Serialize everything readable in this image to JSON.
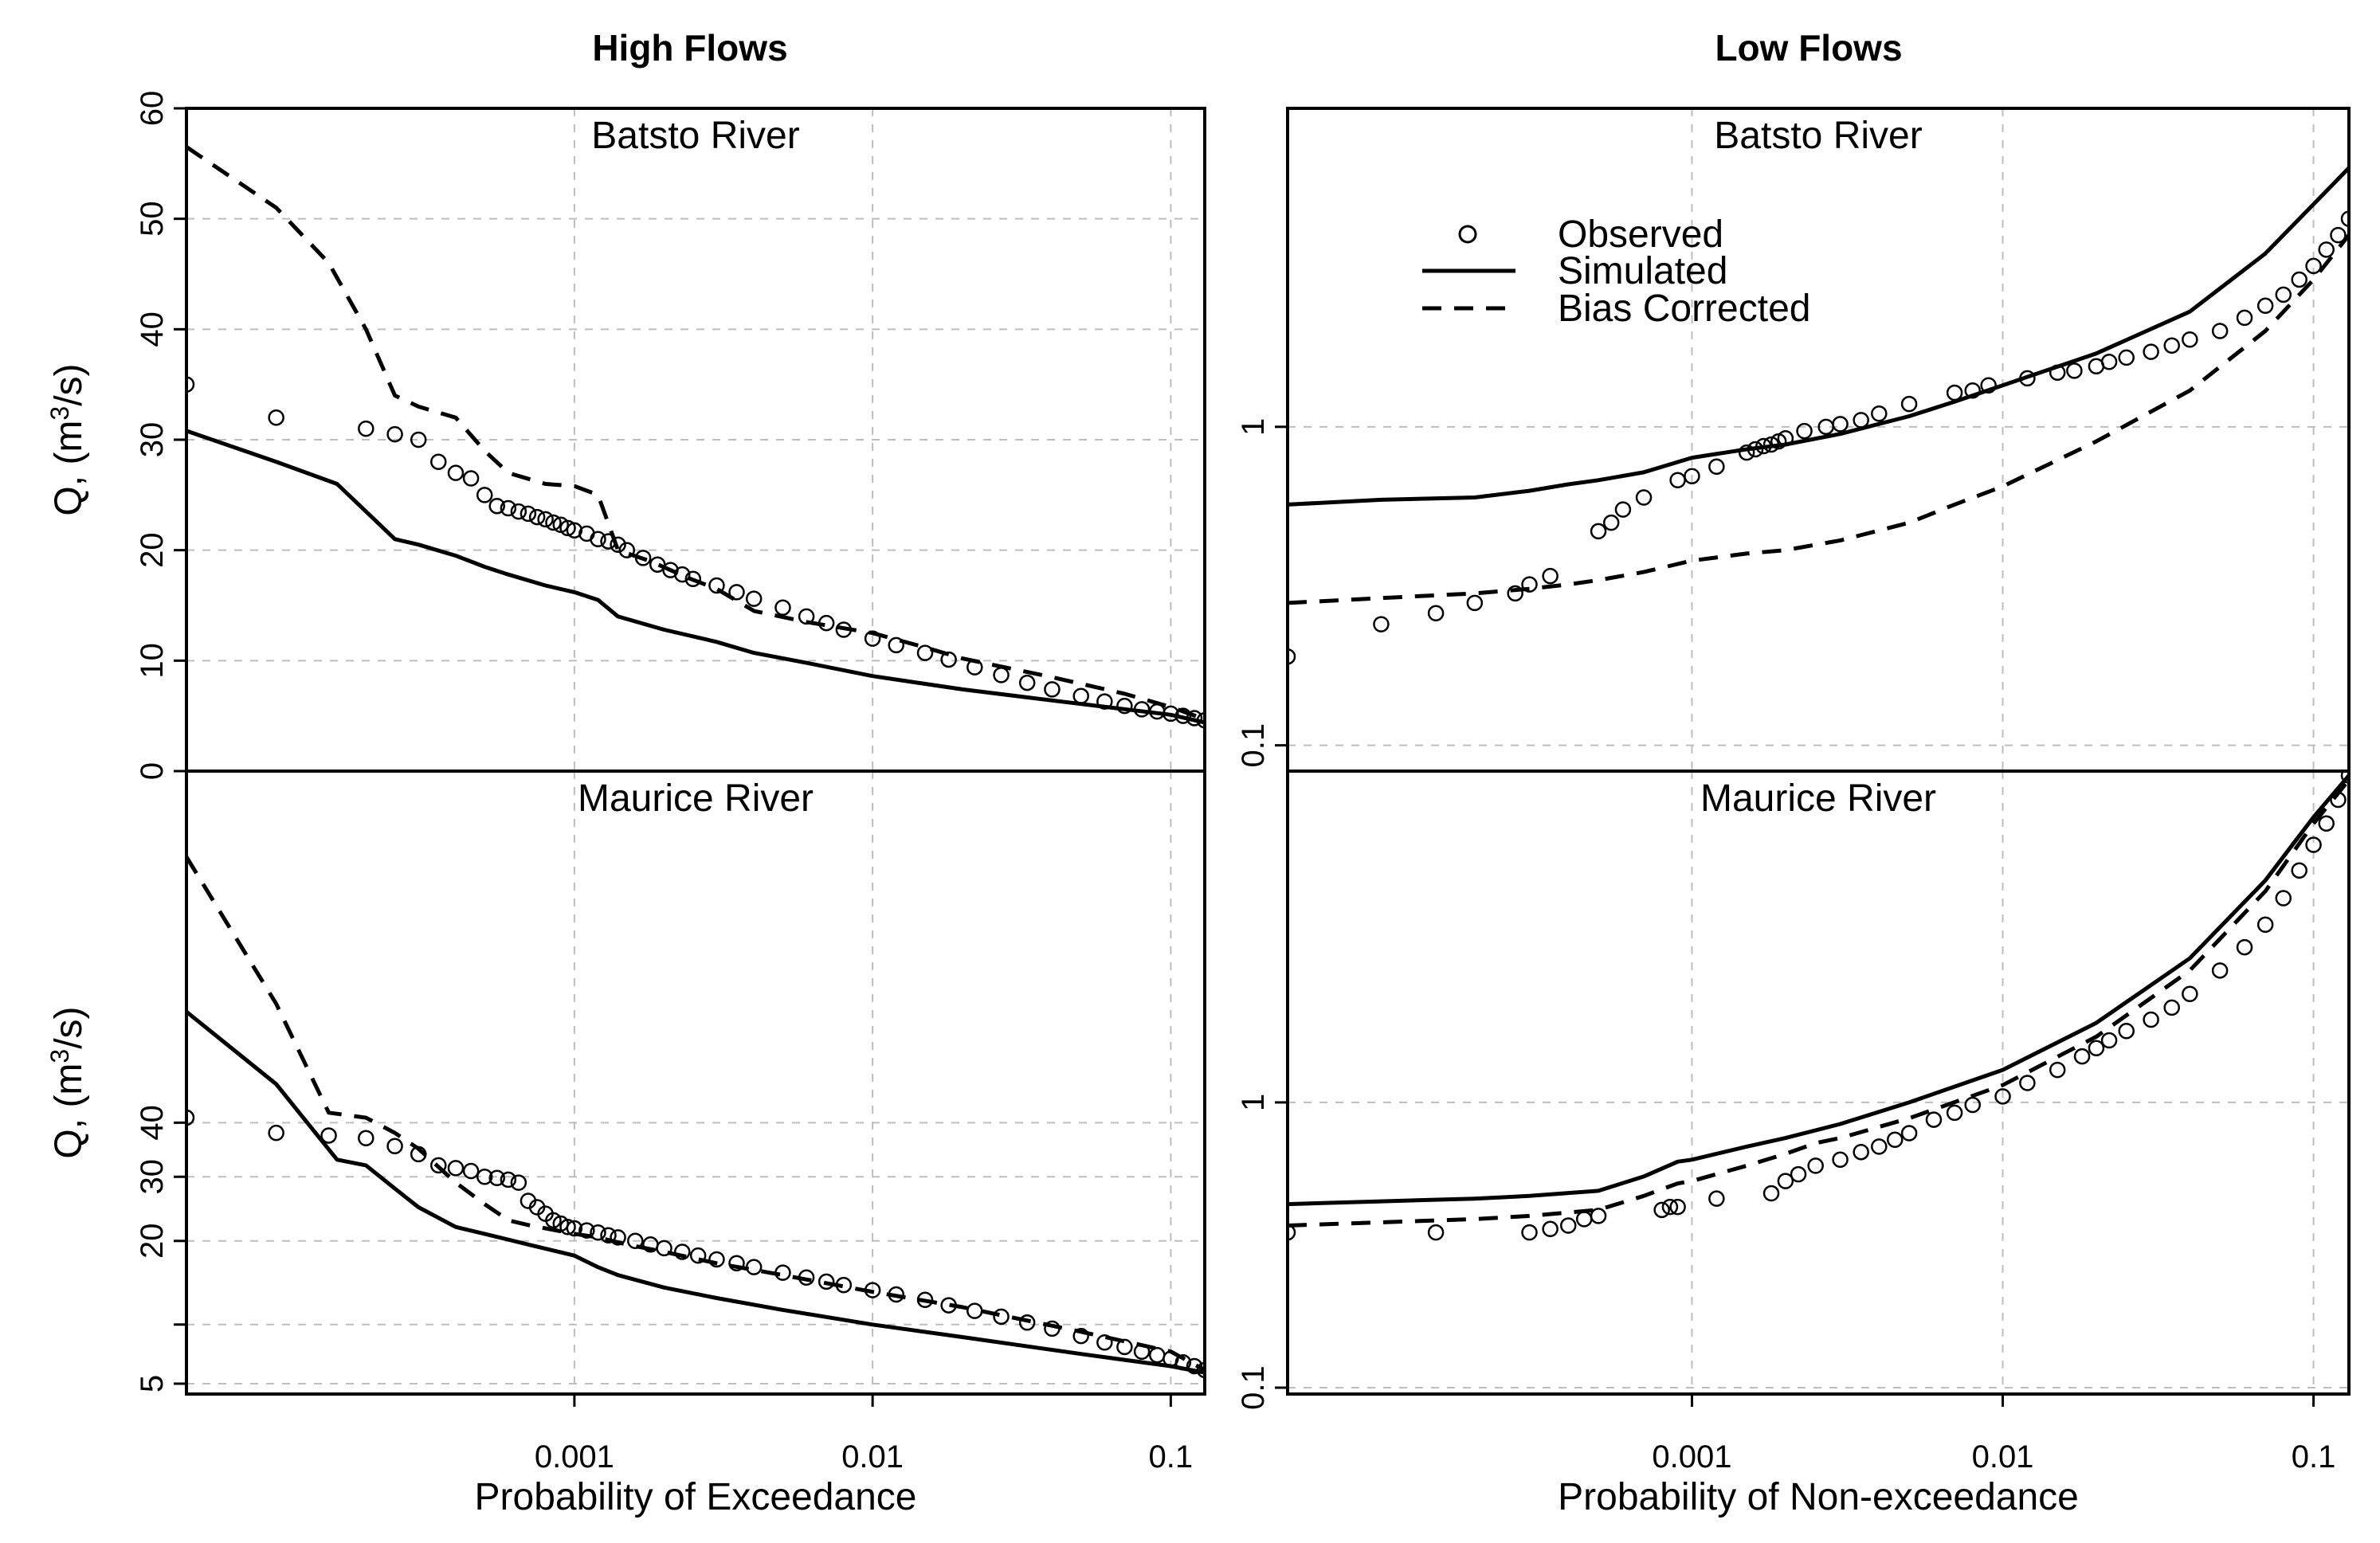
{
  "figure": {
    "column_titles": [
      "High Flows",
      "Low Flows"
    ]
  },
  "legend": {
    "observed": "Observed",
    "simulated": "Simulated",
    "bias_corrected": "Bias Corrected"
  },
  "chart_data": [
    {
      "type": "line",
      "panel": "high-batsto",
      "title": "Batsto River",
      "xscale": "log",
      "yscale": "linear",
      "xlim": [
        5e-05,
        0.13
      ],
      "ylim": [
        0,
        60
      ],
      "xticks": [
        0.001,
        0.01,
        0.1
      ],
      "xtick_labels": [
        "",
        "",
        ""
      ],
      "yticks": [
        0,
        10,
        20,
        30,
        40,
        50,
        60
      ],
      "ytick_labels": [
        "0",
        "10",
        "20",
        "30",
        "40",
        "50",
        "60"
      ],
      "ylabel": "Q, (m",
      "ylabel_sup": "3",
      "ylabel_tail": "/s)",
      "series": [
        {
          "name": "Observed",
          "style": "points",
          "x": [
            5e-05,
            0.0001,
            0.0002,
            0.00025,
            0.0003,
            0.00035,
            0.0004,
            0.00045,
            0.0005,
            0.00055,
            0.0006,
            0.00065,
            0.0007,
            0.00075,
            0.0008,
            0.00085,
            0.0009,
            0.00095,
            0.001,
            0.0011,
            0.0012,
            0.0013,
            0.0014,
            0.0015,
            0.0017,
            0.0019,
            0.0021,
            0.0023,
            0.0025,
            0.003,
            0.0035,
            0.004,
            0.005,
            0.006,
            0.007,
            0.008,
            0.01,
            0.012,
            0.015,
            0.018,
            0.022,
            0.027,
            0.033,
            0.04,
            0.05,
            0.06,
            0.07,
            0.08,
            0.09,
            0.1,
            0.11,
            0.12,
            0.13
          ],
          "y": [
            35,
            32,
            31,
            30.5,
            30,
            28,
            27,
            26.5,
            25,
            24,
            23.8,
            23.5,
            23.3,
            23,
            22.8,
            22.5,
            22.3,
            22,
            21.8,
            21.5,
            21,
            20.8,
            20.5,
            20,
            19.3,
            18.7,
            18.2,
            17.8,
            17.4,
            16.8,
            16.2,
            15.6,
            14.8,
            14,
            13.4,
            12.8,
            12,
            11.4,
            10.7,
            10.1,
            9.4,
            8.7,
            8.0,
            7.4,
            6.8,
            6.3,
            5.9,
            5.6,
            5.4,
            5.2,
            5.0,
            4.8,
            4.6
          ]
        },
        {
          "name": "Simulated",
          "style": "solid",
          "x": [
            5e-05,
            0.0001,
            0.00016,
            0.0002,
            0.00025,
            0.0003,
            0.0004,
            0.0005,
            0.0006,
            0.0008,
            0.001,
            0.0012,
            0.0014,
            0.002,
            0.003,
            0.004,
            0.006,
            0.01,
            0.02,
            0.04,
            0.07,
            0.1,
            0.13
          ],
          "y": [
            30.8,
            28,
            26,
            23.5,
            21,
            20.5,
            19.5,
            18.5,
            17.8,
            16.8,
            16.2,
            15.5,
            14,
            12.8,
            11.7,
            10.7,
            9.8,
            8.6,
            7.4,
            6.4,
            5.6,
            5.1,
            4.4
          ]
        },
        {
          "name": "Bias Corrected",
          "style": "dashed",
          "x": [
            5e-05,
            0.0001,
            0.00015,
            0.0002,
            0.00025,
            0.0003,
            0.0004,
            0.0005,
            0.0006,
            0.0008,
            0.001,
            0.0012,
            0.0014,
            0.0018,
            0.0024,
            0.003,
            0.004,
            0.006,
            0.01,
            0.015,
            0.02,
            0.04,
            0.07,
            0.1,
            0.13
          ],
          "y": [
            56.5,
            51,
            46,
            40,
            34,
            33,
            32,
            29,
            27,
            26,
            25.8,
            25,
            20,
            19,
            17.5,
            16.5,
            14.5,
            13.5,
            12.5,
            11.2,
            10.2,
            8.5,
            7,
            5.8,
            4.7
          ]
        }
      ]
    },
    {
      "type": "line",
      "panel": "high-maurice",
      "title": "Maurice River",
      "xscale": "log",
      "yscale": "sqrt",
      "xlim": [
        5e-05,
        0.13
      ],
      "ylim": [
        4.3,
        140
      ],
      "xticks": [
        0.001,
        0.01,
        0.1
      ],
      "xtick_labels": [
        "0.001",
        "0.01",
        "0.1"
      ],
      "yticks": [
        5,
        10,
        20,
        30,
        40
      ],
      "ytick_labels": [
        "5",
        "",
        "20",
        "30",
        "40"
      ],
      "xlabel": "Probability of Exceedance",
      "ylabel": "Q, (m",
      "ylabel_sup": "3",
      "ylabel_tail": "/s)",
      "series": [
        {
          "name": "Observed",
          "style": "points",
          "x": [
            5e-05,
            0.0001,
            0.00015,
            0.0002,
            0.00025,
            0.0003,
            0.00035,
            0.0004,
            0.00045,
            0.0005,
            0.00055,
            0.0006,
            0.00065,
            0.0007,
            0.00075,
            0.0008,
            0.00085,
            0.0009,
            0.00095,
            0.001,
            0.0011,
            0.0012,
            0.0013,
            0.0014,
            0.0016,
            0.0018,
            0.002,
            0.0023,
            0.0026,
            0.003,
            0.0035,
            0.004,
            0.005,
            0.006,
            0.007,
            0.008,
            0.01,
            0.012,
            0.015,
            0.018,
            0.022,
            0.027,
            0.033,
            0.04,
            0.05,
            0.06,
            0.07,
            0.08,
            0.09,
            0.1,
            0.11,
            0.12,
            0.13
          ],
          "y": [
            41,
            38,
            37.5,
            37,
            35.5,
            34,
            32,
            31.5,
            31,
            30,
            29.8,
            29.5,
            29,
            26,
            25,
            24,
            23,
            22.5,
            22,
            21.8,
            21.5,
            21.2,
            20.8,
            20.5,
            20,
            19.5,
            19,
            18.5,
            18,
            17.5,
            17,
            16.5,
            15.8,
            15.2,
            14.7,
            14.3,
            13.7,
            13.2,
            12.6,
            12,
            11.4,
            10.8,
            10.2,
            9.6,
            8.9,
            8.3,
            7.9,
            7.5,
            7.2,
            6.9,
            6.6,
            6.3,
            6.0
          ]
        },
        {
          "name": "Simulated",
          "style": "solid",
          "x": [
            5e-05,
            0.0001,
            0.00016,
            0.0002,
            0.00025,
            0.0003,
            0.0004,
            0.0005,
            0.0007,
            0.001,
            0.0012,
            0.0014,
            0.002,
            0.003,
            0.005,
            0.01,
            0.02,
            0.05,
            0.1,
            0.13
          ],
          "y": [
            65,
            48,
            33,
            32,
            28,
            25,
            22,
            21,
            19.5,
            18,
            16.5,
            15.5,
            14,
            12.8,
            11.5,
            10,
            8.8,
            7.3,
            6.3,
            5.8
          ]
        },
        {
          "name": "Bias Corrected",
          "style": "dashed",
          "x": [
            5e-05,
            0.0001,
            0.00015,
            0.0002,
            0.00025,
            0.0003,
            0.0004,
            0.0005,
            0.0006,
            0.0007,
            0.0008,
            0.001,
            0.0012,
            0.0015,
            0.002,
            0.003,
            0.005,
            0.01,
            0.02,
            0.05,
            0.1,
            0.13
          ],
          "y": [
            110,
            67,
            42,
            41,
            38,
            35,
            29,
            25.5,
            23,
            22.3,
            21.8,
            21,
            20.5,
            19.5,
            18.5,
            17,
            15.5,
            13.5,
            11.8,
            9.3,
            7.5,
            6.0
          ]
        }
      ]
    },
    {
      "type": "line",
      "panel": "low-batsto",
      "title": "Batsto River",
      "xscale": "log",
      "yscale": "log",
      "xlim": [
        5e-05,
        0.13
      ],
      "ylim": [
        0.083,
        10
      ],
      "xticks": [
        0.001,
        0.01,
        0.1
      ],
      "xtick_labels": [
        "",
        "",
        ""
      ],
      "yticks": [
        0.1,
        1
      ],
      "ytick_labels": [
        "0.1",
        "1"
      ],
      "legend_position": "top-left",
      "series": [
        {
          "name": "Observed",
          "style": "points",
          "x": [
            5e-05,
            0.0001,
            0.00015,
            0.0002,
            0.00027,
            0.0003,
            0.00035,
            0.0005,
            0.00055,
            0.0006,
            0.0007,
            0.0009,
            0.001,
            0.0012,
            0.0015,
            0.0016,
            0.0017,
            0.0018,
            0.0019,
            0.002,
            0.0023,
            0.0027,
            0.003,
            0.0035,
            0.004,
            0.005,
            0.007,
            0.008,
            0.009,
            0.012,
            0.015,
            0.017,
            0.02,
            0.022,
            0.025,
            0.03,
            0.035,
            0.04,
            0.05,
            0.06,
            0.07,
            0.08,
            0.09,
            0.1,
            0.11,
            0.12,
            0.13
          ],
          "y": [
            0.19,
            0.24,
            0.26,
            0.28,
            0.3,
            0.32,
            0.34,
            0.47,
            0.5,
            0.55,
            0.6,
            0.68,
            0.7,
            0.75,
            0.83,
            0.85,
            0.87,
            0.88,
            0.9,
            0.92,
            0.97,
            1.0,
            1.02,
            1.05,
            1.1,
            1.18,
            1.28,
            1.3,
            1.35,
            1.42,
            1.48,
            1.5,
            1.55,
            1.6,
            1.65,
            1.72,
            1.8,
            1.88,
            2.0,
            2.2,
            2.4,
            2.6,
            2.9,
            3.2,
            3.6,
            4.0,
            4.5
          ]
        },
        {
          "name": "Simulated",
          "style": "solid",
          "x": [
            5e-05,
            0.0001,
            0.0002,
            0.0003,
            0.0004,
            0.0005,
            0.0007,
            0.001,
            0.0015,
            0.002,
            0.003,
            0.005,
            0.007,
            0.01,
            0.02,
            0.04,
            0.07,
            0.1,
            0.13
          ],
          "y": [
            0.57,
            0.59,
            0.6,
            0.63,
            0.66,
            0.68,
            0.72,
            0.8,
            0.85,
            0.88,
            0.95,
            1.08,
            1.2,
            1.35,
            1.7,
            2.3,
            3.5,
            5.0,
            6.5
          ]
        },
        {
          "name": "Bias Corrected",
          "style": "dashed",
          "x": [
            5e-05,
            0.0001,
            0.0002,
            0.0003,
            0.0004,
            0.0005,
            0.0007,
            0.001,
            0.0015,
            0.002,
            0.003,
            0.005,
            0.007,
            0.01,
            0.02,
            0.04,
            0.07,
            0.1,
            0.13
          ],
          "y": [
            0.28,
            0.29,
            0.3,
            0.31,
            0.32,
            0.33,
            0.35,
            0.38,
            0.4,
            0.41,
            0.44,
            0.5,
            0.57,
            0.65,
            0.9,
            1.3,
            2.0,
            2.9,
            4.0
          ]
        }
      ]
    },
    {
      "type": "line",
      "panel": "low-maurice",
      "title": "Maurice River",
      "xscale": "log",
      "yscale": "log",
      "xlim": [
        5e-05,
        0.13
      ],
      "ylim": [
        0.095,
        14.5
      ],
      "xticks": [
        0.001,
        0.01,
        0.1
      ],
      "xtick_labels": [
        "0.001",
        "0.01",
        "0.1"
      ],
      "yticks": [
        0.1,
        1
      ],
      "ytick_labels": [
        "0.1",
        "1"
      ],
      "xlabel": "Probability of Non-exceedance",
      "series": [
        {
          "name": "Observed",
          "style": "points",
          "x": [
            5e-05,
            0.00015,
            0.0003,
            0.00035,
            0.0004,
            0.00045,
            0.0005,
            0.0008,
            0.00085,
            0.0009,
            0.0012,
            0.0018,
            0.002,
            0.0022,
            0.0025,
            0.003,
            0.0035,
            0.004,
            0.0045,
            0.005,
            0.006,
            0.007,
            0.008,
            0.01,
            0.012,
            0.015,
            0.018,
            0.02,
            0.022,
            0.025,
            0.03,
            0.035,
            0.04,
            0.05,
            0.06,
            0.07,
            0.08,
            0.09,
            0.1,
            0.11,
            0.12,
            0.13
          ],
          "y": [
            0.35,
            0.35,
            0.35,
            0.36,
            0.37,
            0.39,
            0.4,
            0.42,
            0.43,
            0.43,
            0.46,
            0.48,
            0.53,
            0.56,
            0.6,
            0.63,
            0.67,
            0.7,
            0.74,
            0.78,
            0.87,
            0.92,
            0.98,
            1.05,
            1.17,
            1.3,
            1.45,
            1.55,
            1.65,
            1.78,
            1.95,
            2.15,
            2.4,
            2.9,
            3.5,
            4.2,
            5.2,
            6.5,
            8.0,
            9.5,
            11.5,
            14.0
          ]
        },
        {
          "name": "Simulated",
          "style": "solid",
          "x": [
            5e-05,
            0.0001,
            0.0002,
            0.0003,
            0.0005,
            0.0007,
            0.0009,
            0.001,
            0.0015,
            0.002,
            0.003,
            0.005,
            0.01,
            0.02,
            0.04,
            0.07,
            0.1,
            0.13
          ],
          "y": [
            0.44,
            0.45,
            0.46,
            0.47,
            0.49,
            0.55,
            0.62,
            0.63,
            0.7,
            0.75,
            0.84,
            1.0,
            1.3,
            1.9,
            3.2,
            6.0,
            10.0,
            14.0
          ]
        },
        {
          "name": "Bias Corrected",
          "style": "dashed",
          "x": [
            5e-05,
            0.0001,
            0.0002,
            0.0003,
            0.0005,
            0.0007,
            0.0009,
            0.001,
            0.0015,
            0.002,
            0.0025,
            0.003,
            0.005,
            0.01,
            0.02,
            0.04,
            0.07,
            0.1,
            0.13
          ],
          "y": [
            0.37,
            0.38,
            0.39,
            0.4,
            0.42,
            0.47,
            0.52,
            0.53,
            0.6,
            0.66,
            0.72,
            0.75,
            0.88,
            1.15,
            1.7,
            2.9,
            5.5,
            9.5,
            13.5
          ]
        }
      ]
    }
  ]
}
